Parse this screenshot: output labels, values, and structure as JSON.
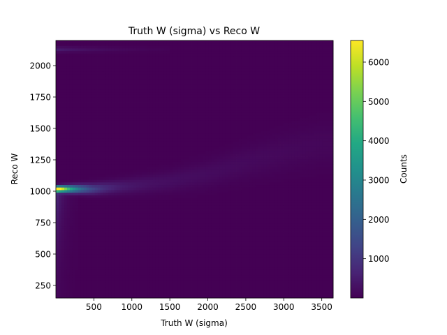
{
  "chart_data": {
    "type": "heatmap",
    "title": "Truth W (sigma) vs Reco W",
    "xlabel": "Truth W (sigma)",
    "ylabel": "Reco W",
    "xlim": [
      0,
      3650
    ],
    "ylim": [
      150,
      2200
    ],
    "x_ticks": [
      500,
      1000,
      1500,
      2000,
      2500,
      3000,
      3500
    ],
    "y_ticks": [
      250,
      500,
      750,
      1000,
      1250,
      1500,
      1750,
      2000
    ],
    "colormap": "viridis",
    "colorbar": {
      "label": "Counts",
      "range": [
        0,
        6550
      ],
      "ticks": [
        1000,
        2000,
        3000,
        4000,
        5000,
        6000
      ]
    },
    "bins": {
      "x": 100,
      "y": 100
    },
    "features": {
      "ridge": {
        "description": "main band: Reco W vs Truth W",
        "points": [
          [
            30,
            1020
          ],
          [
            500,
            1020
          ],
          [
            1000,
            1045
          ],
          [
            1500,
            1080
          ],
          [
            2000,
            1140
          ],
          [
            2500,
            1230
          ],
          [
            3000,
            1310
          ],
          [
            3500,
            1380
          ]
        ],
        "peak_counts": 6500,
        "peak_x": 60
      },
      "low_tail": {
        "x_max": 300,
        "y_min": 150,
        "peak_counts": 900
      },
      "top_strip": {
        "y": 2130,
        "x_max": 1500,
        "peak_counts": 500
      }
    }
  }
}
